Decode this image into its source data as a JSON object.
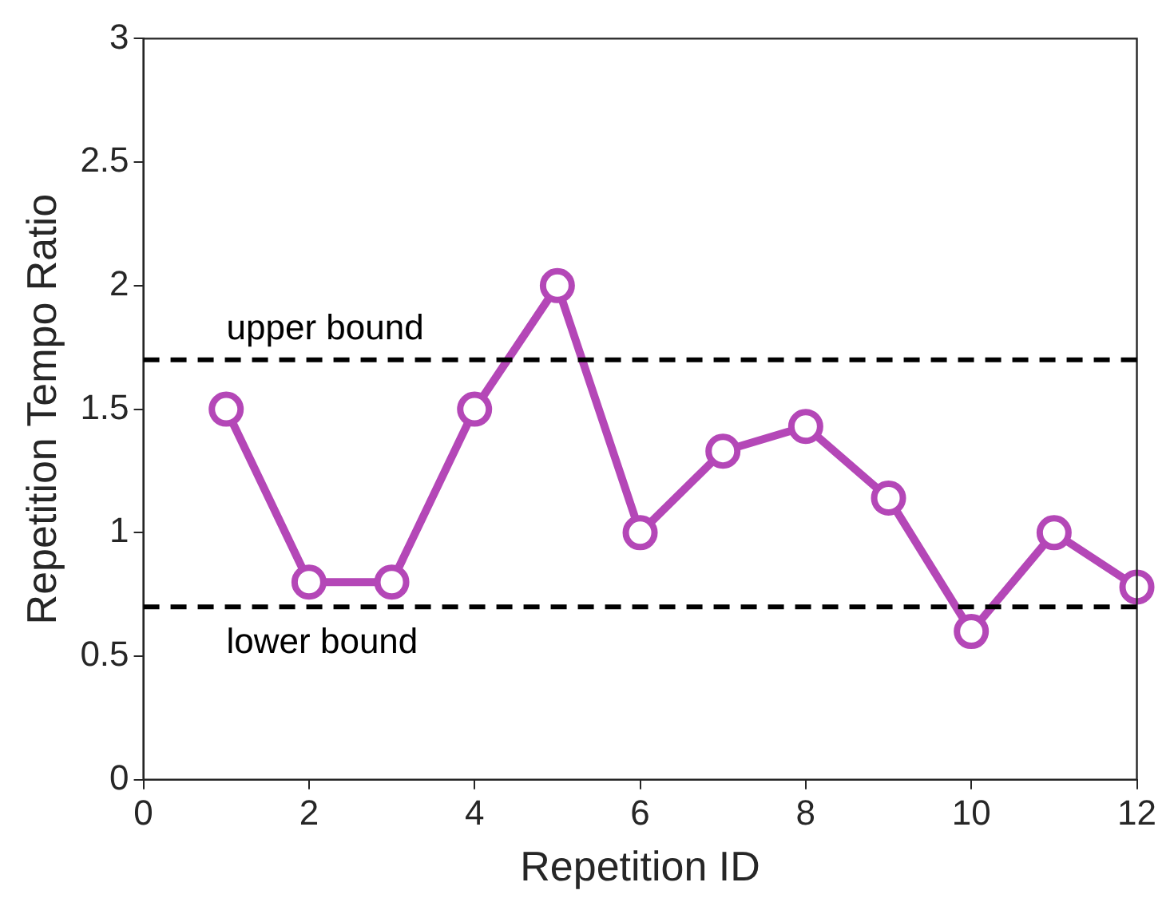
{
  "chart_data": {
    "type": "line",
    "xlabel": "Repetition ID",
    "ylabel": "Repetition Tempo Ratio",
    "x": [
      1,
      2,
      3,
      4,
      5,
      6,
      7,
      8,
      9,
      10,
      11,
      12
    ],
    "series": [
      {
        "color": "#b447b7",
        "values": [
          1.5,
          0.8,
          0.8,
          1.5,
          2.0,
          1.0,
          1.33,
          1.43,
          1.14,
          0.6,
          1.0,
          0.78
        ]
      }
    ],
    "xlim": [
      0,
      12
    ],
    "xticks": [
      0,
      2,
      4,
      6,
      8,
      10,
      12
    ],
    "ylim": [
      0,
      3
    ],
    "yticks": [
      0,
      0.5,
      1,
      1.5,
      2,
      2.5,
      3
    ],
    "ref_lines": [
      {
        "axis": "y",
        "value": 1.7,
        "label": "upper bound",
        "color": "#000000",
        "line_style": "dashed"
      },
      {
        "axis": "y",
        "value": 0.7,
        "label": "lower bound",
        "color": "#000000",
        "line_style": "dashed"
      }
    ],
    "marker": "circle",
    "line_style": "solid",
    "grid": false,
    "legend": false
  }
}
